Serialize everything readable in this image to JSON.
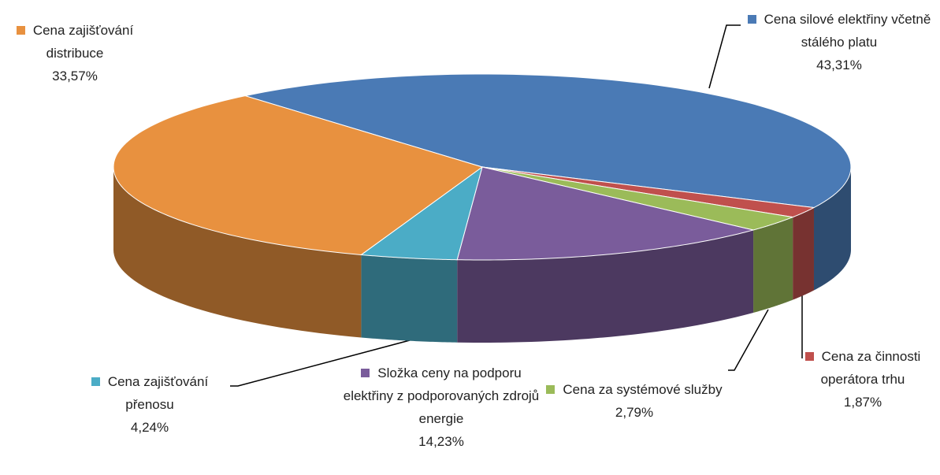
{
  "chart_data": {
    "type": "pie3d",
    "categories": [
      "Cena silové elektřiny včetně stálého platu",
      "Cena za činnosti operátora trhu",
      "Cena za systémové služby",
      "Složka ceny na podporu elektřiny z podporovaných zdrojů energie",
      "Cena zajišťování přenosu",
      "Cena zajišťování distribuce"
    ],
    "values": [
      43.31,
      1.87,
      2.79,
      14.23,
      4.24,
      33.57
    ],
    "value_labels": [
      "43,31%",
      "1,87%",
      "2,79%",
      "14,23%",
      "4,24%",
      "33,57%"
    ],
    "colors": [
      "#4a7ab5",
      "#c0504d",
      "#9bbb59",
      "#7a5c9b",
      "#4bacc6",
      "#e8913f"
    ]
  }
}
